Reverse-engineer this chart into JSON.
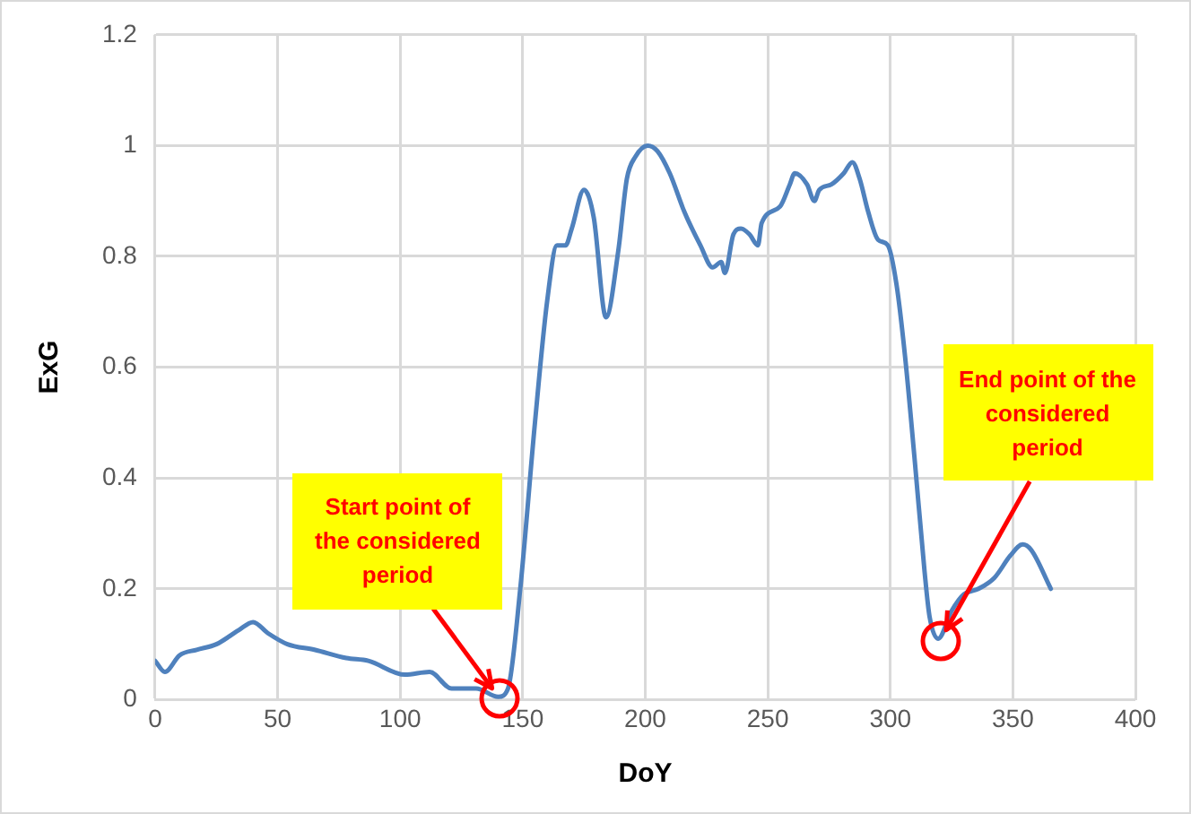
{
  "chart_data": {
    "type": "line",
    "xlabel": "DoY",
    "ylabel": "ExG",
    "x": [
      0,
      4,
      10,
      17,
      25,
      34,
      40,
      46,
      54,
      65,
      78,
      87,
      102,
      112,
      121,
      131,
      140,
      144,
      149,
      155,
      160,
      164,
      167.5,
      170,
      175,
      179,
      184,
      189,
      192.5,
      196,
      201,
      205,
      210,
      216,
      222.5,
      227.5,
      231,
      232.5,
      236,
      239,
      242.5,
      246,
      247.5,
      255,
      259,
      261,
      266,
      269,
      271,
      276,
      281,
      284.5,
      287.5,
      291,
      295,
      299,
      302.5,
      306,
      310,
      314,
      316,
      319.5,
      325,
      330,
      336,
      342.5,
      349,
      354,
      357.5,
      365.5
    ],
    "series": [
      {
        "color": "#4f81bd",
        "values": [
          0.07,
          0.05,
          0.08,
          0.09,
          0.1,
          0.125,
          0.14,
          0.12,
          0.1,
          0.09,
          0.075,
          0.07,
          0.045,
          0.05,
          0.02,
          0.02,
          0.005,
          0.02,
          0.2,
          0.5,
          0.72,
          0.82,
          0.82,
          0.85,
          0.92,
          0.87,
          0.69,
          0.81,
          0.94,
          0.98,
          1.0,
          0.99,
          0.95,
          0.88,
          0.82,
          0.78,
          0.79,
          0.77,
          0.84,
          0.85,
          0.84,
          0.82,
          0.86,
          0.89,
          0.93,
          0.95,
          0.93,
          0.9,
          0.92,
          0.93,
          0.95,
          0.97,
          0.94,
          0.88,
          0.83,
          0.82,
          0.75,
          0.62,
          0.43,
          0.23,
          0.15,
          0.11,
          0.16,
          0.19,
          0.2,
          0.22,
          0.26,
          0.28,
          0.27,
          0.2
        ]
      }
    ],
    "xlim": [
      0,
      400
    ],
    "xticks": [
      0,
      50,
      100,
      150,
      200,
      250,
      300,
      350,
      400
    ],
    "ylim": [
      0,
      1.2
    ],
    "yticks": [
      0,
      0.2,
      0.4,
      0.6,
      0.8,
      1,
      1.2
    ],
    "grid": true,
    "legend": false,
    "marker": "none",
    "line_style": "solid",
    "annotations": [
      {
        "text": "Start point of the considered period",
        "x": 140,
        "y": 0.005
      },
      {
        "text": "End point of the considered period",
        "x": 319.5,
        "y": 0.11
      }
    ]
  }
}
